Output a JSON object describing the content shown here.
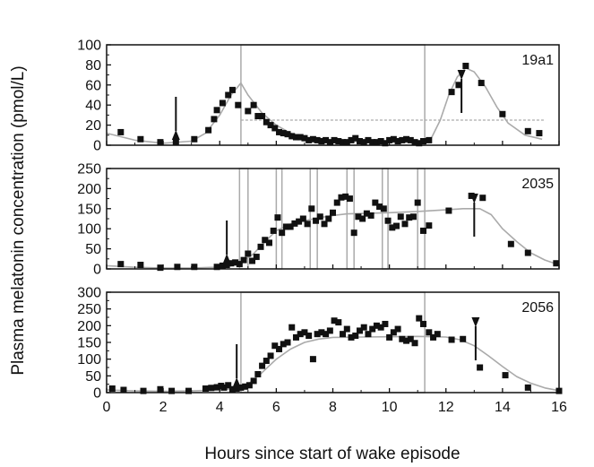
{
  "chart_data": {
    "type": "scatter",
    "xlabel": "Hours since start of wake episode",
    "ylabel": "Plasma melatonin concentration (pmol/L)",
    "xlim": [
      0,
      16
    ],
    "xticks": [
      0,
      2,
      4,
      6,
      8,
      10,
      12,
      14,
      16
    ],
    "grid": false,
    "colors": {
      "points": "#111111",
      "fit": "#aaaaaa",
      "light": "#aaaaaa",
      "arrow": "#111111"
    },
    "panels": [
      {
        "label": "19a1",
        "ylim": [
          0,
          100
        ],
        "yticks": [
          0,
          20,
          40,
          60,
          80,
          100
        ],
        "arrows": [
          {
            "x": 2.45,
            "direction": "down"
          },
          {
            "x": 12.55,
            "direction": "up"
          }
        ],
        "light_pulses": [
          [
            4.75,
            11.25
          ]
        ],
        "baseline": {
          "x_start": 4.75,
          "x_end": 15.5,
          "y": 25
        },
        "points": [
          [
            0.5,
            13
          ],
          [
            1.2,
            6
          ],
          [
            1.9,
            3
          ],
          [
            2.45,
            3
          ],
          [
            3.1,
            6
          ],
          [
            3.6,
            15
          ],
          [
            3.8,
            26
          ],
          [
            3.9,
            35
          ],
          [
            4.1,
            42
          ],
          [
            4.3,
            50
          ],
          [
            4.45,
            55
          ],
          [
            4.65,
            40
          ],
          [
            5.0,
            34
          ],
          [
            5.2,
            40
          ],
          [
            5.35,
            29
          ],
          [
            5.5,
            29
          ],
          [
            5.65,
            23
          ],
          [
            5.8,
            20
          ],
          [
            5.95,
            17
          ],
          [
            6.1,
            13
          ],
          [
            6.25,
            12
          ],
          [
            6.4,
            11
          ],
          [
            6.55,
            9
          ],
          [
            6.7,
            8
          ],
          [
            6.85,
            8
          ],
          [
            7.0,
            7
          ],
          [
            7.15,
            5
          ],
          [
            7.3,
            6
          ],
          [
            7.45,
            5
          ],
          [
            7.6,
            4
          ],
          [
            7.75,
            5
          ],
          [
            7.9,
            3
          ],
          [
            8.05,
            5
          ],
          [
            8.2,
            4
          ],
          [
            8.35,
            3
          ],
          [
            8.5,
            3
          ],
          [
            8.65,
            5
          ],
          [
            8.8,
            7
          ],
          [
            8.95,
            4
          ],
          [
            9.1,
            3
          ],
          [
            9.25,
            5
          ],
          [
            9.4,
            3
          ],
          [
            9.55,
            3
          ],
          [
            9.7,
            4
          ],
          [
            9.85,
            2
          ],
          [
            10.0,
            5
          ],
          [
            10.15,
            6
          ],
          [
            10.3,
            4
          ],
          [
            10.45,
            5
          ],
          [
            10.6,
            6
          ],
          [
            10.75,
            5
          ],
          [
            10.9,
            3
          ],
          [
            11.05,
            2
          ],
          [
            11.2,
            4
          ],
          [
            11.4,
            5
          ],
          [
            12.2,
            53
          ],
          [
            12.45,
            60
          ],
          [
            12.7,
            79
          ],
          [
            13.25,
            62
          ],
          [
            14.0,
            31
          ],
          [
            14.9,
            14
          ],
          [
            15.3,
            12
          ]
        ],
        "fit": [
          [
            0,
            12
          ],
          [
            1,
            5
          ],
          [
            2,
            2
          ],
          [
            3,
            4
          ],
          [
            3.5,
            12
          ],
          [
            4.0,
            30
          ],
          [
            4.4,
            50
          ],
          [
            4.75,
            62
          ],
          [
            5.0,
            50
          ],
          [
            5.5,
            32
          ],
          [
            6.0,
            20
          ],
          [
            6.5,
            12
          ],
          [
            7.0,
            8
          ],
          [
            7.5,
            6
          ],
          [
            8.5,
            4
          ],
          [
            9.5,
            3
          ],
          [
            10.5,
            3
          ],
          [
            11.25,
            3
          ],
          [
            11.5,
            8
          ],
          [
            11.8,
            25
          ],
          [
            12.1,
            50
          ],
          [
            12.4,
            68
          ],
          [
            12.7,
            77
          ],
          [
            13.0,
            73
          ],
          [
            13.4,
            58
          ],
          [
            13.8,
            38
          ],
          [
            14.2,
            22
          ],
          [
            14.8,
            10
          ],
          [
            15.4,
            6
          ]
        ]
      },
      {
        "label": "2035",
        "ylim": [
          0,
          250
        ],
        "yticks": [
          0,
          50,
          100,
          150,
          200,
          250
        ],
        "arrows": [
          {
            "x": 4.25,
            "direction": "down"
          },
          {
            "x": 13.0,
            "direction": "up"
          }
        ],
        "light_pulses": [
          [
            4.7,
            5.0
          ],
          [
            6.0,
            6.2
          ],
          [
            7.2,
            7.45
          ],
          [
            8.5,
            8.75
          ],
          [
            9.75,
            9.95
          ],
          [
            11.0,
            11.25
          ]
        ],
        "points": [
          [
            0.5,
            12
          ],
          [
            1.2,
            10
          ],
          [
            1.9,
            3
          ],
          [
            2.5,
            5
          ],
          [
            3.1,
            5
          ],
          [
            3.9,
            5
          ],
          [
            4.1,
            8
          ],
          [
            4.25,
            10
          ],
          [
            4.4,
            14
          ],
          [
            4.55,
            16
          ],
          [
            4.7,
            12
          ],
          [
            4.85,
            22
          ],
          [
            5.0,
            38
          ],
          [
            5.15,
            20
          ],
          [
            5.3,
            30
          ],
          [
            5.45,
            55
          ],
          [
            5.6,
            72
          ],
          [
            5.75,
            65
          ],
          [
            5.9,
            95
          ],
          [
            6.05,
            128
          ],
          [
            6.2,
            90
          ],
          [
            6.35,
            105
          ],
          [
            6.5,
            105
          ],
          [
            6.65,
            113
          ],
          [
            6.8,
            118
          ],
          [
            6.95,
            125
          ],
          [
            7.1,
            112
          ],
          [
            7.25,
            150
          ],
          [
            7.4,
            120
          ],
          [
            7.55,
            130
          ],
          [
            7.7,
            112
          ],
          [
            7.85,
            125
          ],
          [
            8.0,
            140
          ],
          [
            8.15,
            165
          ],
          [
            8.3,
            178
          ],
          [
            8.45,
            180
          ],
          [
            8.6,
            175
          ],
          [
            8.75,
            90
          ],
          [
            8.9,
            130
          ],
          [
            9.05,
            125
          ],
          [
            9.2,
            138
          ],
          [
            9.35,
            133
          ],
          [
            9.5,
            165
          ],
          [
            9.65,
            155
          ],
          [
            9.8,
            150
          ],
          [
            9.95,
            120
          ],
          [
            10.1,
            103
          ],
          [
            10.25,
            107
          ],
          [
            10.4,
            130
          ],
          [
            10.55,
            112
          ],
          [
            10.7,
            128
          ],
          [
            10.85,
            130
          ],
          [
            11.0,
            165
          ],
          [
            11.2,
            95
          ],
          [
            11.4,
            108
          ],
          [
            12.1,
            145
          ],
          [
            12.9,
            182
          ],
          [
            13.3,
            177
          ],
          [
            14.3,
            62
          ],
          [
            14.9,
            40
          ],
          [
            15.9,
            14
          ]
        ],
        "fit": [
          [
            0,
            8
          ],
          [
            1,
            4
          ],
          [
            2,
            2
          ],
          [
            3,
            2
          ],
          [
            3.8,
            4
          ],
          [
            4.4,
            8
          ],
          [
            4.8,
            18
          ],
          [
            5.2,
            38
          ],
          [
            5.6,
            68
          ],
          [
            6.0,
            95
          ],
          [
            6.5,
            112
          ],
          [
            7.0,
            120
          ],
          [
            7.5,
            127
          ],
          [
            8.0,
            133
          ],
          [
            8.5,
            137
          ],
          [
            9.0,
            138
          ],
          [
            10.0,
            140
          ],
          [
            11.0,
            143
          ],
          [
            12.0,
            147
          ],
          [
            12.6,
            150
          ],
          [
            13.2,
            150
          ],
          [
            13.6,
            135
          ],
          [
            14.0,
            100
          ],
          [
            14.5,
            68
          ],
          [
            15.0,
            40
          ],
          [
            15.5,
            22
          ],
          [
            16.0,
            10
          ]
        ]
      },
      {
        "label": "2056",
        "ylim": [
          0,
          300
        ],
        "yticks": [
          0,
          50,
          100,
          150,
          200,
          250,
          300
        ],
        "arrows": [
          {
            "x": 4.6,
            "direction": "down"
          },
          {
            "x": 13.05,
            "direction": "up"
          }
        ],
        "light_pulses": [
          [
            4.75,
            11.25
          ]
        ],
        "points": [
          [
            0.2,
            12
          ],
          [
            0.6,
            8
          ],
          [
            1.3,
            5
          ],
          [
            1.9,
            10
          ],
          [
            2.3,
            5
          ],
          [
            2.9,
            5
          ],
          [
            3.5,
            12
          ],
          [
            3.7,
            14
          ],
          [
            3.9,
            16
          ],
          [
            4.05,
            20
          ],
          [
            4.15,
            15
          ],
          [
            4.3,
            22
          ],
          [
            4.45,
            10
          ],
          [
            4.6,
            12
          ],
          [
            4.75,
            15
          ],
          [
            4.9,
            18
          ],
          [
            5.05,
            22
          ],
          [
            5.2,
            35
          ],
          [
            5.35,
            55
          ],
          [
            5.5,
            80
          ],
          [
            5.65,
            95
          ],
          [
            5.8,
            110
          ],
          [
            5.95,
            140
          ],
          [
            6.1,
            130
          ],
          [
            6.25,
            145
          ],
          [
            6.4,
            150
          ],
          [
            6.55,
            195
          ],
          [
            6.7,
            165
          ],
          [
            6.85,
            175
          ],
          [
            7.0,
            180
          ],
          [
            7.15,
            170
          ],
          [
            7.3,
            100
          ],
          [
            7.45,
            175
          ],
          [
            7.6,
            180
          ],
          [
            7.75,
            175
          ],
          [
            7.9,
            185
          ],
          [
            8.05,
            215
          ],
          [
            8.2,
            210
          ],
          [
            8.35,
            175
          ],
          [
            8.5,
            190
          ],
          [
            8.65,
            165
          ],
          [
            8.8,
            170
          ],
          [
            8.95,
            185
          ],
          [
            9.1,
            195
          ],
          [
            9.25,
            175
          ],
          [
            9.4,
            190
          ],
          [
            9.55,
            200
          ],
          [
            9.7,
            195
          ],
          [
            9.85,
            205
          ],
          [
            10.0,
            165
          ],
          [
            10.15,
            180
          ],
          [
            10.3,
            190
          ],
          [
            10.45,
            160
          ],
          [
            10.6,
            155
          ],
          [
            10.75,
            160
          ],
          [
            10.9,
            148
          ],
          [
            11.05,
            222
          ],
          [
            11.2,
            205
          ],
          [
            11.4,
            180
          ],
          [
            11.55,
            165
          ],
          [
            11.7,
            175
          ],
          [
            12.2,
            158
          ],
          [
            12.6,
            160
          ],
          [
            13.2,
            75
          ],
          [
            14.1,
            52
          ],
          [
            14.9,
            15
          ],
          [
            16.0,
            5
          ]
        ],
        "fit": [
          [
            0,
            8
          ],
          [
            1,
            5
          ],
          [
            2,
            4
          ],
          [
            3,
            5
          ],
          [
            4.0,
            8
          ],
          [
            4.5,
            12
          ],
          [
            5.0,
            25
          ],
          [
            5.5,
            60
          ],
          [
            6.0,
            100
          ],
          [
            6.5,
            130
          ],
          [
            7.0,
            150
          ],
          [
            7.5,
            160
          ],
          [
            8.0,
            165
          ],
          [
            9.0,
            166
          ],
          [
            10.0,
            167
          ],
          [
            11.0,
            168
          ],
          [
            12.0,
            166
          ],
          [
            12.5,
            158
          ],
          [
            13.0,
            140
          ],
          [
            13.5,
            110
          ],
          [
            14.0,
            78
          ],
          [
            14.5,
            48
          ],
          [
            15.0,
            28
          ],
          [
            15.5,
            14
          ],
          [
            16.0,
            6
          ]
        ]
      }
    ]
  }
}
